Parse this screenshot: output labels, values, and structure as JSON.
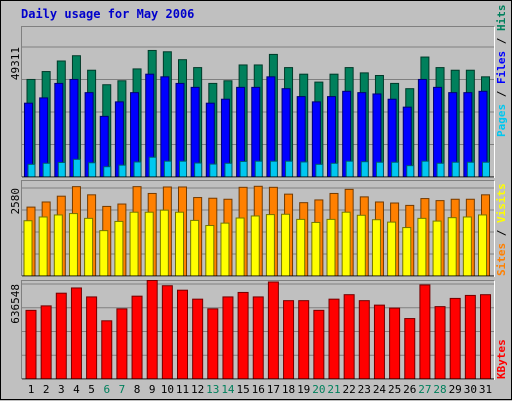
{
  "title": "Daily usage for May 2006",
  "colors": {
    "hits": "#00805c",
    "files": "#0000ff",
    "pages": "#00c8f0",
    "visits": "#ffff00",
    "sites": "#ff8000",
    "kbytes": "#ff0000",
    "weekend_label": "#00805c",
    "weekday_label": "#000000"
  },
  "chart_data": [
    {
      "type": "bar",
      "name": "hits-files-pages",
      "ymax_label": "49311",
      "ylim": [
        0,
        49311
      ],
      "legend": [
        "Pages",
        "Files",
        "Hits"
      ],
      "categories": [
        "1",
        "2",
        "3",
        "4",
        "5",
        "6",
        "7",
        "8",
        "9",
        "10",
        "11",
        "12",
        "13",
        "14",
        "15",
        "16",
        "17",
        "18",
        "19",
        "20",
        "21",
        "22",
        "23",
        "24",
        "25",
        "26",
        "27",
        "28",
        "29",
        "30",
        "31"
      ],
      "series": [
        {
          "name": "Hits",
          "values": [
            37000,
            40000,
            44000,
            46000,
            40500,
            35000,
            36500,
            41000,
            48000,
            47500,
            44500,
            41500,
            35500,
            36500,
            42500,
            42500,
            46500,
            41500,
            39000,
            36000,
            39000,
            41500,
            39500,
            38500,
            35500,
            33500,
            45500,
            41500,
            40500,
            40500,
            38000
          ]
        },
        {
          "name": "Files",
          "values": [
            28000,
            30000,
            35500,
            37000,
            32000,
            23000,
            28500,
            32000,
            39000,
            38000,
            35500,
            34000,
            28000,
            29500,
            34000,
            34000,
            38000,
            33500,
            30500,
            28500,
            30500,
            32500,
            32000,
            31500,
            29500,
            26500,
            37000,
            34000,
            32000,
            32000,
            32500
          ]
        },
        {
          "name": "Pages",
          "values": [
            4800,
            5200,
            5500,
            6700,
            5400,
            3900,
            4500,
            5700,
            7500,
            6000,
            6000,
            5300,
            4900,
            5200,
            5900,
            6000,
            6000,
            6000,
            5700,
            4800,
            5200,
            6000,
            5800,
            5600,
            5600,
            4300,
            6000,
            5200,
            5600,
            5600,
            5600
          ]
        }
      ]
    },
    {
      "type": "bar",
      "name": "visits-sites",
      "ymax_label": "2580",
      "ylim": [
        0,
        2580
      ],
      "legend": [
        "Sites",
        "Visits"
      ],
      "categories": [
        "1",
        "2",
        "3",
        "4",
        "5",
        "6",
        "7",
        "8",
        "9",
        "10",
        "11",
        "12",
        "13",
        "14",
        "15",
        "16",
        "17",
        "18",
        "19",
        "20",
        "21",
        "22",
        "23",
        "24",
        "25",
        "26",
        "27",
        "28",
        "29",
        "30",
        "31"
      ],
      "series": [
        {
          "name": "Sites",
          "values": [
            2020,
            2170,
            2340,
            2620,
            2380,
            2040,
            2110,
            2620,
            2420,
            2610,
            2610,
            2300,
            2280,
            2250,
            2600,
            2630,
            2600,
            2400,
            2150,
            2230,
            2420,
            2540,
            2320,
            2170,
            2140,
            2070,
            2270,
            2210,
            2250,
            2250,
            2380
          ]
        },
        {
          "name": "Visits",
          "values": [
            1620,
            1730,
            1790,
            1830,
            1690,
            1330,
            1600,
            1870,
            1870,
            1930,
            1870,
            1630,
            1480,
            1550,
            1700,
            1760,
            1800,
            1810,
            1660,
            1570,
            1660,
            1870,
            1780,
            1650,
            1580,
            1420,
            1690,
            1610,
            1710,
            1730,
            1790
          ]
        }
      ]
    },
    {
      "type": "bar",
      "name": "kbytes",
      "ymax_label": "636548",
      "ylim": [
        0,
        636548
      ],
      "legend": [
        "KBytes"
      ],
      "categories": [
        "1",
        "2",
        "3",
        "4",
        "5",
        "6",
        "7",
        "8",
        "9",
        "10",
        "11",
        "12",
        "13",
        "14",
        "15",
        "16",
        "17",
        "18",
        "19",
        "20",
        "21",
        "22",
        "23",
        "24",
        "25",
        "26",
        "27",
        "28",
        "29",
        "30",
        "31"
      ],
      "series": [
        {
          "name": "KBytes",
          "values": [
            460000,
            490000,
            575000,
            610000,
            550000,
            390000,
            470000,
            555000,
            660000,
            625000,
            595000,
            535000,
            470000,
            550000,
            580000,
            550000,
            650000,
            525000,
            525000,
            460000,
            535000,
            565000,
            525000,
            495000,
            475000,
            405000,
            630000,
            485000,
            540000,
            560000,
            565000
          ]
        }
      ]
    }
  ],
  "weekend_days": [
    "6",
    "7",
    "13",
    "14",
    "20",
    "21",
    "27",
    "28"
  ]
}
